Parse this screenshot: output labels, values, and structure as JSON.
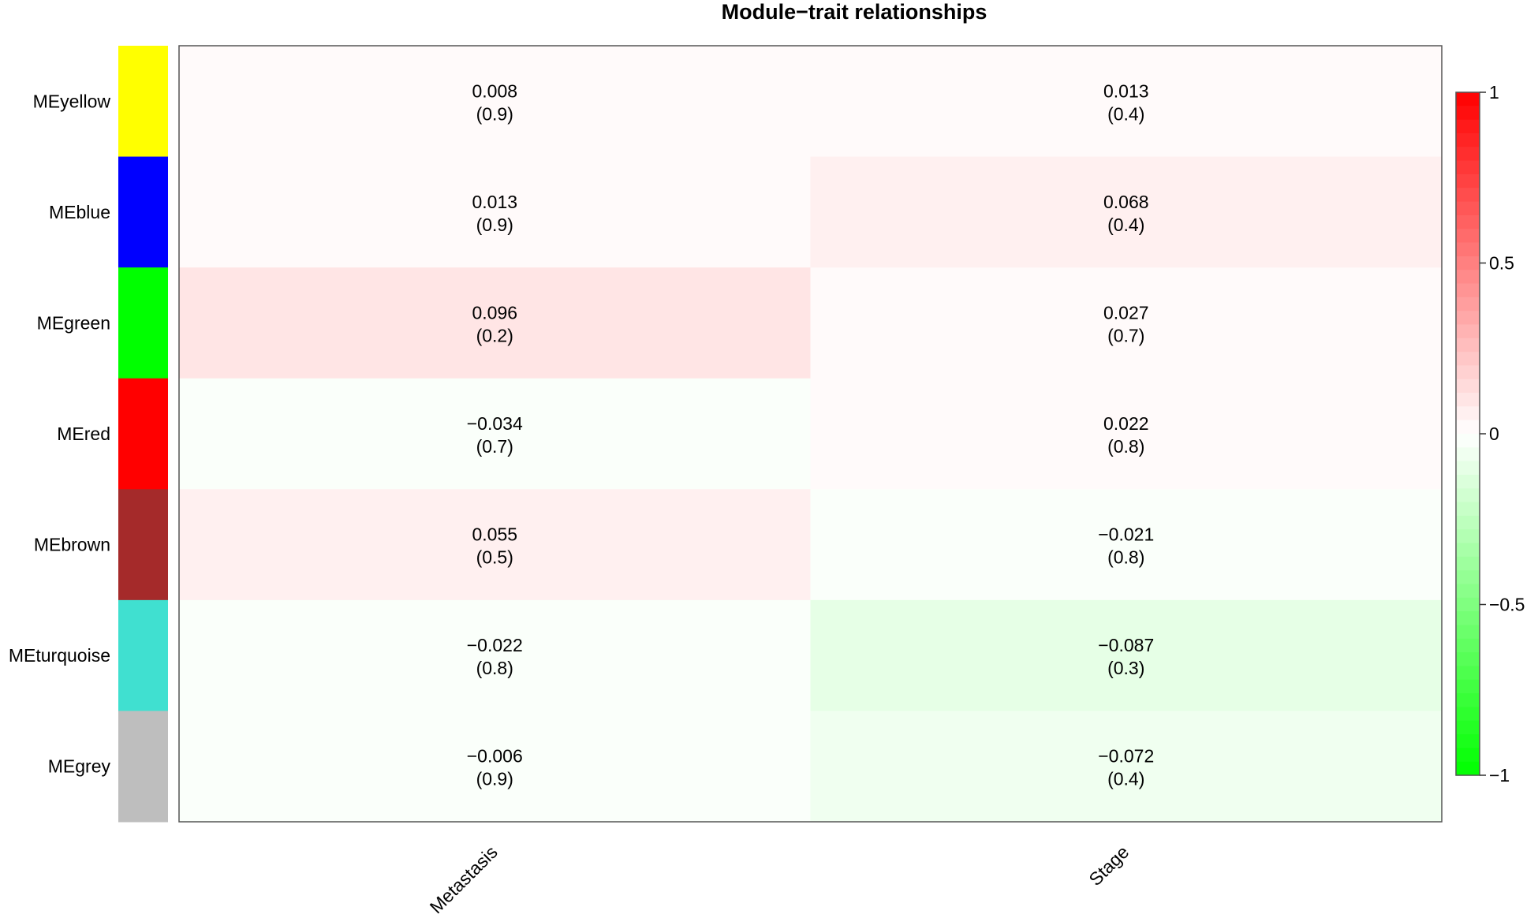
{
  "chart_data": {
    "type": "heatmap",
    "title": "Module−trait relationships",
    "rows": [
      "MEyellow",
      "MEblue",
      "MEgreen",
      "MEred",
      "MEbrown",
      "MEturquoise",
      "MEgrey"
    ],
    "row_colors": [
      "#FFFF00",
      "#0000FF",
      "#00FF00",
      "#FF0000",
      "#A52A2A",
      "#40E0D0",
      "#BEBEBE"
    ],
    "columns": [
      "Metastasis",
      "Stage"
    ],
    "values": [
      [
        0.008,
        0.013
      ],
      [
        0.013,
        0.068
      ],
      [
        0.096,
        0.027
      ],
      [
        -0.034,
        0.022
      ],
      [
        0.055,
        -0.021
      ],
      [
        -0.022,
        -0.087
      ],
      [
        -0.006,
        -0.072
      ]
    ],
    "cell_text": [
      [
        [
          "0.008",
          "(0.9)"
        ],
        [
          "0.013",
          "(0.4)"
        ]
      ],
      [
        [
          "0.013",
          "(0.9)"
        ],
        [
          "0.068",
          "(0.4)"
        ]
      ],
      [
        [
          "0.096",
          "(0.2)"
        ],
        [
          "0.027",
          "(0.7)"
        ]
      ],
      [
        [
          "−0.034",
          "(0.7)"
        ],
        [
          "0.022",
          "(0.8)"
        ]
      ],
      [
        [
          "0.055",
          "(0.5)"
        ],
        [
          "−0.021",
          "(0.8)"
        ]
      ],
      [
        [
          "−0.022",
          "(0.8)"
        ],
        [
          "−0.087",
          "(0.3)"
        ]
      ],
      [
        [
          "−0.006",
          "(0.9)"
        ],
        [
          "−0.072",
          "(0.4)"
        ]
      ]
    ],
    "colorscale": {
      "min": -1,
      "max": 1,
      "low_color": "#00FF00",
      "mid_color": "#FFFFFF",
      "high_color": "#FF0000",
      "bins": 50
    },
    "legend_ticks": [
      {
        "value": 1,
        "label": "1"
      },
      {
        "value": 0.5,
        "label": "0.5"
      },
      {
        "value": 0,
        "label": "0"
      },
      {
        "value": -0.5,
        "label": "−0.5"
      },
      {
        "value": -1,
        "label": "−1"
      }
    ],
    "legend_placement": "right"
  }
}
